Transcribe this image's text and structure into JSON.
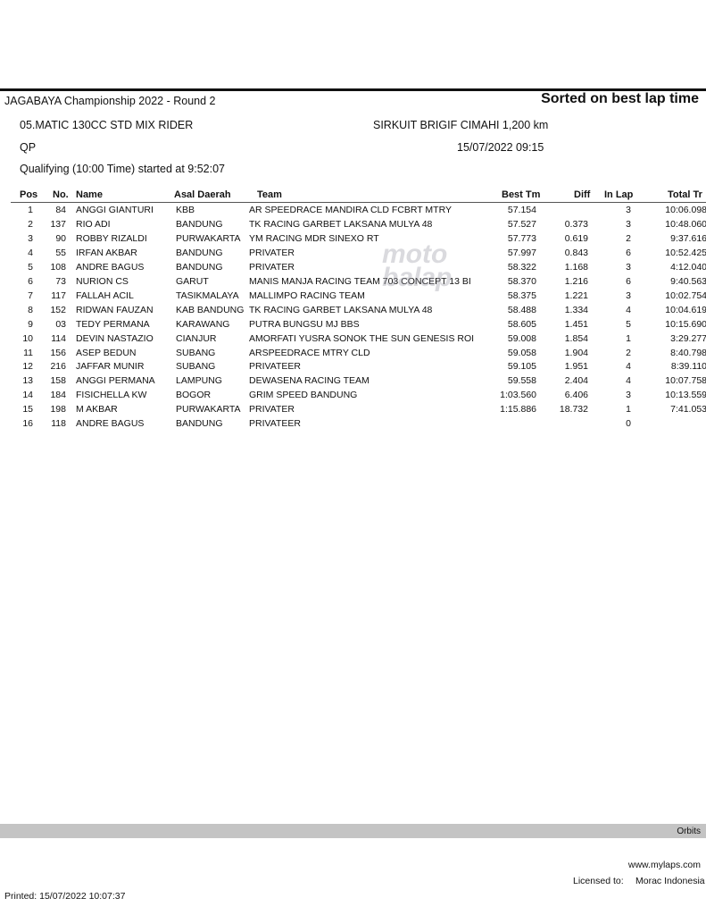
{
  "header": {
    "title": "JAGABAYA Championship 2022 - Round 2",
    "sort_label": "Sorted on best lap time",
    "class_name": "05.MATIC 130CC STD MIX RIDER",
    "circuit": "SIRKUIT BRIGIF CIMAHI 1,200 km",
    "session_code": "QP",
    "datetime": "15/07/2022 09:15",
    "session_info": "Qualifying (10:00 Time) started at 9:52:07"
  },
  "columns": [
    "Pos",
    "No.",
    "Name",
    "Asal Daerah",
    "Team",
    "Best Tm",
    "Diff",
    "In Lap",
    "Total Tr"
  ],
  "rows": [
    [
      "1",
      "84",
      "ANGGI GIANTURI",
      "KBB",
      "AR SPEEDRACE MANDIRA CLD FCBRT MTRY",
      "57.154",
      "",
      "3",
      "10:06.098"
    ],
    [
      "2",
      "137",
      "RIO ADI",
      "BANDUNG",
      "TK RACING GARBET LAKSANA MULYA 48",
      "57.527",
      "0.373",
      "3",
      "10:48.060"
    ],
    [
      "3",
      "90",
      "ROBBY RIZALDI",
      "PURWAKARTA",
      "YM RACING MDR SINEXO RT",
      "57.773",
      "0.619",
      "2",
      "9:37.616"
    ],
    [
      "4",
      "55",
      "IRFAN AKBAR",
      "BANDUNG",
      "PRIVATER",
      "57.997",
      "0.843",
      "6",
      "10:52.425"
    ],
    [
      "5",
      "108",
      "ANDRE BAGUS",
      "BANDUNG",
      "PRIVATER",
      "58.322",
      "1.168",
      "3",
      "4:12.040"
    ],
    [
      "6",
      "73",
      "NURION CS",
      "GARUT",
      "MANIS MANJA RACING TEAM 703 CONCEPT 13 BI",
      "58.370",
      "1.216",
      "6",
      "9:40.563"
    ],
    [
      "7",
      "117",
      "FALLAH ACIL",
      "TASIKMALAYA",
      "MALLIMPO RACING TEAM",
      "58.375",
      "1.221",
      "3",
      "10:02.754"
    ],
    [
      "8",
      "152",
      "RIDWAN FAUZAN",
      "KAB BANDUNG",
      "TK RACING GARBET LAKSANA MULYA 48",
      "58.488",
      "1.334",
      "4",
      "10:04.619"
    ],
    [
      "9",
      "03",
      "TEDY PERMANA",
      "KARAWANG",
      "PUTRA BUNGSU MJ BBS",
      "58.605",
      "1.451",
      "5",
      "10:15.690"
    ],
    [
      "10",
      "114",
      "DEVIN NASTAZIO",
      "CIANJUR",
      "AMORFATI YUSRA SONOK THE SUN GENESIS ROI",
      "59.008",
      "1.854",
      "1",
      "3:29.277"
    ],
    [
      "11",
      "156",
      "ASEP BEDUN",
      "SUBANG",
      "ARSPEEDRACE MTRY CLD",
      "59.058",
      "1.904",
      "2",
      "8:40.798"
    ],
    [
      "12",
      "216",
      "JAFFAR MUNIR",
      "SUBANG",
      "PRIVATEER",
      "59.105",
      "1.951",
      "4",
      "8:39.110"
    ],
    [
      "13",
      "158",
      "ANGGI PERMANA",
      "LAMPUNG",
      "DEWASENA RACING TEAM",
      "59.558",
      "2.404",
      "4",
      "10:07.758"
    ],
    [
      "14",
      "184",
      "FISICHELLA KW",
      "BOGOR",
      "GRIM SPEED BANDUNG",
      "1:03.560",
      "6.406",
      "3",
      "10:13.559"
    ],
    [
      "15",
      "198",
      "M AKBAR",
      "PURWAKARTA",
      "PRIVATER",
      "1:15.886",
      "18.732",
      "1",
      "7:41.053"
    ],
    [
      "16",
      "118",
      "ANDRE BAGUS",
      "BANDUNG",
      "PRIVATEER",
      "",
      "",
      "0",
      ""
    ]
  ],
  "watermark": "motobalap.com",
  "footer": {
    "system": "Orbits",
    "website": "www.mylaps.com",
    "licensed_label": "Licensed to:",
    "licensee": "Morac Indonesia",
    "printed": "Printed: 15/07/2022 10:07:37"
  }
}
